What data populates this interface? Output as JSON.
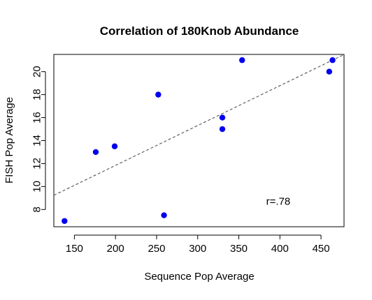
{
  "chart_data": {
    "type": "scatter",
    "title": "Correlation of 180Knob Abundance",
    "xlabel": "Sequence Pop Average",
    "ylabel": "FISH Pop Average",
    "xlim": [
      125,
      478
    ],
    "ylim": [
      6.5,
      21.5
    ],
    "xticks": [
      150,
      200,
      250,
      300,
      350,
      400,
      450
    ],
    "yticks": [
      8,
      10,
      12,
      14,
      16,
      18,
      20
    ],
    "points": [
      {
        "x": 138,
        "y": 7.0
      },
      {
        "x": 176,
        "y": 13.0
      },
      {
        "x": 199,
        "y": 13.5
      },
      {
        "x": 252,
        "y": 18.0
      },
      {
        "x": 259,
        "y": 7.5
      },
      {
        "x": 330,
        "y": 16.0
      },
      {
        "x": 330,
        "y": 15.0
      },
      {
        "x": 354,
        "y": 21.0
      },
      {
        "x": 460,
        "y": 20.0
      },
      {
        "x": 464,
        "y": 21.0
      }
    ],
    "trendline": {
      "style": "dashed",
      "color": "#444444",
      "slope": 0.0347,
      "intercept": 4.9
    },
    "annotation": {
      "text": "r=.78",
      "x": 398,
      "y": 8.4
    },
    "point_color": "#0000EE",
    "grid": false,
    "legend": "none"
  }
}
